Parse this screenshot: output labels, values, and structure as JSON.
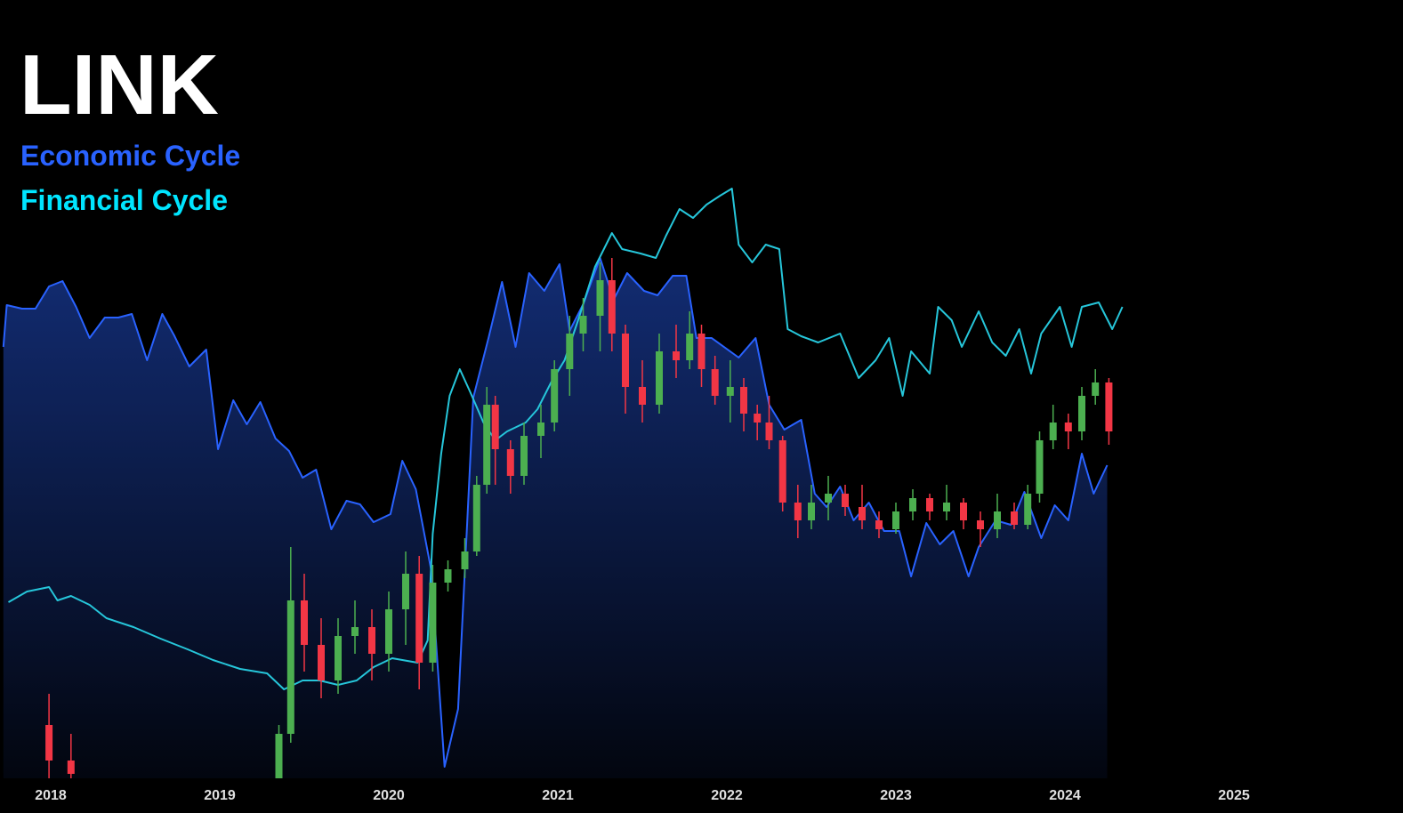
{
  "chart_data": {
    "type": "candlestick",
    "title": "LINK",
    "up_color": "#4caf50",
    "down_color": "#f23645",
    "x": [
      2017.99,
      2018.12,
      2019.35,
      2019.42,
      2019.5,
      2019.6,
      2019.7,
      2019.8,
      2019.9,
      2020.0,
      2020.1,
      2020.18,
      2020.26,
      2020.35,
      2020.45,
      2020.52,
      2020.58,
      2020.63,
      2020.72,
      2020.8,
      2020.9,
      2020.98,
      2021.07,
      2021.15,
      2021.25,
      2021.32,
      2021.4,
      2021.5,
      2021.6,
      2021.7,
      2021.78,
      2021.85,
      2021.93,
      2022.02,
      2022.1,
      2022.18,
      2022.25,
      2022.33,
      2022.42,
      2022.5,
      2022.6,
      2022.7,
      2022.8,
      2022.9,
      2023.0,
      2023.1,
      2023.2,
      2023.3,
      2023.4,
      2023.5,
      2023.6,
      2023.7,
      2023.78,
      2023.85,
      2023.93,
      2024.02,
      2024.1,
      2024.18,
      2024.26
    ],
    "open": [
      60,
      20,
      0,
      50,
      200,
      150,
      110,
      160,
      170,
      140,
      190,
      230,
      130,
      220,
      235,
      255,
      330,
      420,
      370,
      340,
      385,
      400,
      460,
      500,
      520,
      560,
      500,
      440,
      420,
      480,
      470,
      500,
      460,
      430,
      440,
      410,
      400,
      380,
      310,
      290,
      310,
      320,
      305,
      290,
      280,
      300,
      315,
      300,
      310,
      290,
      280,
      300,
      285,
      320,
      380,
      400,
      390,
      430,
      445
    ],
    "high": [
      95,
      50,
      60,
      260,
      230,
      180,
      180,
      200,
      190,
      210,
      255,
      250,
      240,
      245,
      270,
      340,
      440,
      430,
      380,
      400,
      420,
      470,
      520,
      540,
      580,
      585,
      510,
      470,
      500,
      510,
      525,
      510,
      475,
      470,
      450,
      420,
      430,
      385,
      330,
      330,
      340,
      330,
      330,
      300,
      310,
      325,
      320,
      330,
      315,
      300,
      320,
      310,
      330,
      390,
      420,
      410,
      440,
      460,
      450
    ],
    "low": [
      0,
      0,
      0,
      40,
      120,
      90,
      95,
      140,
      110,
      120,
      150,
      100,
      120,
      210,
      225,
      250,
      320,
      330,
      320,
      330,
      360,
      390,
      430,
      480,
      480,
      480,
      410,
      400,
      410,
      450,
      460,
      440,
      420,
      400,
      390,
      380,
      370,
      300,
      270,
      280,
      290,
      295,
      280,
      270,
      275,
      290,
      290,
      290,
      280,
      260,
      270,
      280,
      280,
      310,
      370,
      370,
      380,
      420,
      375
    ],
    "close": [
      20,
      5,
      50,
      200,
      150,
      110,
      160,
      170,
      140,
      190,
      230,
      130,
      220,
      235,
      255,
      330,
      420,
      370,
      340,
      385,
      400,
      460,
      500,
      520,
      560,
      500,
      440,
      420,
      480,
      470,
      500,
      460,
      430,
      440,
      410,
      400,
      380,
      310,
      290,
      310,
      320,
      305,
      290,
      280,
      300,
      315,
      300,
      310,
      290,
      280,
      300,
      285,
      320,
      380,
      400,
      390,
      430,
      445,
      390
    ],
    "series": [
      {
        "name": "Economic Cycle",
        "color": "#2962ff",
        "type": "area",
        "x": [
          2017.72,
          2017.74,
          2017.83,
          2017.91,
          2017.99,
          2018.07,
          2018.15,
          2018.23,
          2018.32,
          2018.4,
          2018.48,
          2018.57,
          2018.66,
          2018.73,
          2018.82,
          2018.92,
          2018.99,
          2019.08,
          2019.16,
          2019.24,
          2019.33,
          2019.41,
          2019.49,
          2019.57,
          2019.66,
          2019.75,
          2019.83,
          2019.91,
          2020.01,
          2020.08,
          2020.16,
          2020.25,
          2020.33,
          2020.41,
          2020.5,
          2020.59,
          2020.67,
          2020.75,
          2020.83,
          2020.92,
          2021.01,
          2021.07,
          2021.15,
          2021.25,
          2021.33,
          2021.41,
          2021.51,
          2021.59,
          2021.68,
          2021.76,
          2021.82,
          2021.91,
          2022.07,
          2022.17,
          2022.25,
          2022.34,
          2022.44,
          2022.52,
          2022.59,
          2022.67,
          2022.75,
          2022.84,
          2022.93,
          2023.02,
          2023.09,
          2023.18,
          2023.26,
          2023.34,
          2023.43,
          2023.49,
          2023.59,
          2023.68,
          2023.76,
          2023.86,
          2023.94,
          2024.02,
          2024.1,
          2024.17,
          2024.25
        ],
        "values": [
          485,
          532,
          528,
          528,
          553,
          559,
          530,
          495,
          518,
          518,
          522,
          470,
          522,
          498,
          463,
          482,
          370,
          425,
          398,
          423,
          382,
          368,
          338,
          347,
          280,
          312,
          308,
          288,
          297,
          357,
          325,
          235,
          13,
          78,
          428,
          495,
          558,
          485,
          568,
          548,
          578,
          503,
          533,
          585,
          538,
          568,
          548,
          543,
          565,
          565,
          495,
          495,
          473,
          495,
          420,
          392,
          403,
          320,
          305,
          328,
          290,
          310,
          278,
          278,
          227,
          287,
          263,
          278,
          227,
          260,
          290,
          285,
          322,
          270,
          307,
          290,
          365,
          320,
          352
        ]
      },
      {
        "name": "Financial Cycle",
        "color": "#26c6da",
        "type": "line",
        "x": [
          2017.75,
          2017.86,
          2017.99,
          2018.04,
          2018.12,
          2018.23,
          2018.33,
          2018.49,
          2018.65,
          2018.81,
          2018.96,
          2019.12,
          2019.28,
          2019.38,
          2019.49,
          2019.59,
          2019.7,
          2019.81,
          2019.91,
          2020.02,
          2020.17,
          2020.23,
          2020.26,
          2020.31,
          2020.36,
          2020.42,
          2020.48,
          2020.56,
          2020.63,
          2020.7,
          2020.81,
          2020.88,
          2020.96,
          2021.04,
          2021.12,
          2021.22,
          2021.32,
          2021.38,
          2021.49,
          2021.58,
          2021.64,
          2021.72,
          2021.8,
          2021.88,
          2021.96,
          2022.03,
          2022.07,
          2022.15,
          2022.23,
          2022.31,
          2022.36,
          2022.44,
          2022.54,
          2022.67,
          2022.78,
          2022.88,
          2022.96,
          2023.04,
          2023.09,
          2023.2,
          2023.25,
          2023.33,
          2023.39,
          2023.49,
          2023.57,
          2023.65,
          2023.73,
          2023.8,
          2023.86,
          2023.97,
          2024.04,
          2024.1,
          2024.2,
          2024.28,
          2024.34
        ],
        "values": [
          198,
          210,
          215,
          200,
          205,
          195,
          180,
          170,
          157,
          145,
          133,
          123,
          118,
          100,
          110,
          110,
          105,
          110,
          125,
          135,
          130,
          155,
          275,
          365,
          430,
          460,
          435,
          400,
          380,
          390,
          400,
          415,
          445,
          470,
          515,
          575,
          613,
          595,
          590,
          585,
          610,
          640,
          630,
          645,
          655,
          663,
          600,
          580,
          600,
          595,
          505,
          497,
          490,
          500,
          450,
          470,
          495,
          430,
          480,
          455,
          530,
          515,
          485,
          525,
          490,
          475,
          505,
          455,
          500,
          530,
          485,
          530,
          535,
          505,
          530
        ]
      }
    ],
    "xlim": [
      2017.7,
      2026.0
    ],
    "xticks": [
      2018,
      2019,
      2020,
      2021,
      2022,
      2023,
      2024,
      2025
    ],
    "ylim": [
      0,
      875
    ]
  }
}
